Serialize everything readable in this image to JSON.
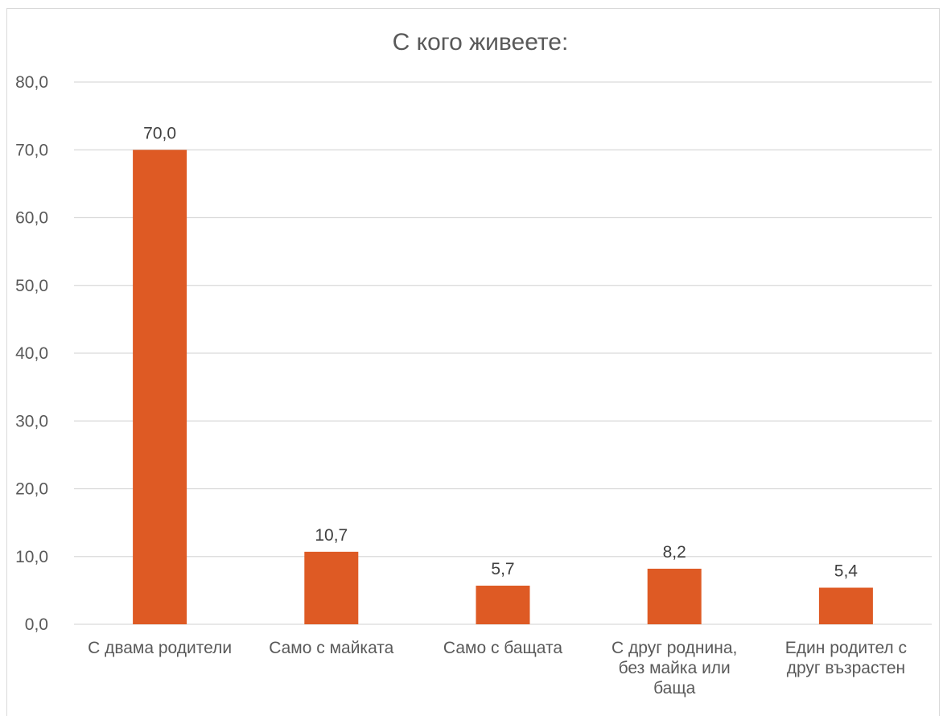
{
  "chart_data": {
    "type": "bar",
    "title": "С кого живеете:",
    "categories": [
      [
        "С двама родители"
      ],
      [
        "Само с майката"
      ],
      [
        "Само с бащата"
      ],
      [
        "С друг роднина,",
        "без майка или",
        "баща"
      ],
      [
        "Един родител с",
        "друг възрастен"
      ]
    ],
    "values": [
      70.0,
      10.7,
      5.7,
      8.2,
      5.4
    ],
    "value_labels": [
      "70,0",
      "10,7",
      "5,7",
      "8,2",
      "5,4"
    ],
    "ylim": [
      0,
      80
    ],
    "yticks": [
      0,
      10,
      20,
      30,
      40,
      50,
      60,
      70,
      80
    ],
    "ytick_labels": [
      "0,0",
      "10,0",
      "20,0",
      "30,0",
      "40,0",
      "50,0",
      "60,0",
      "70,0",
      "80,0"
    ],
    "grid": true,
    "legend": "none",
    "bar_color": "#DE5A24"
  }
}
